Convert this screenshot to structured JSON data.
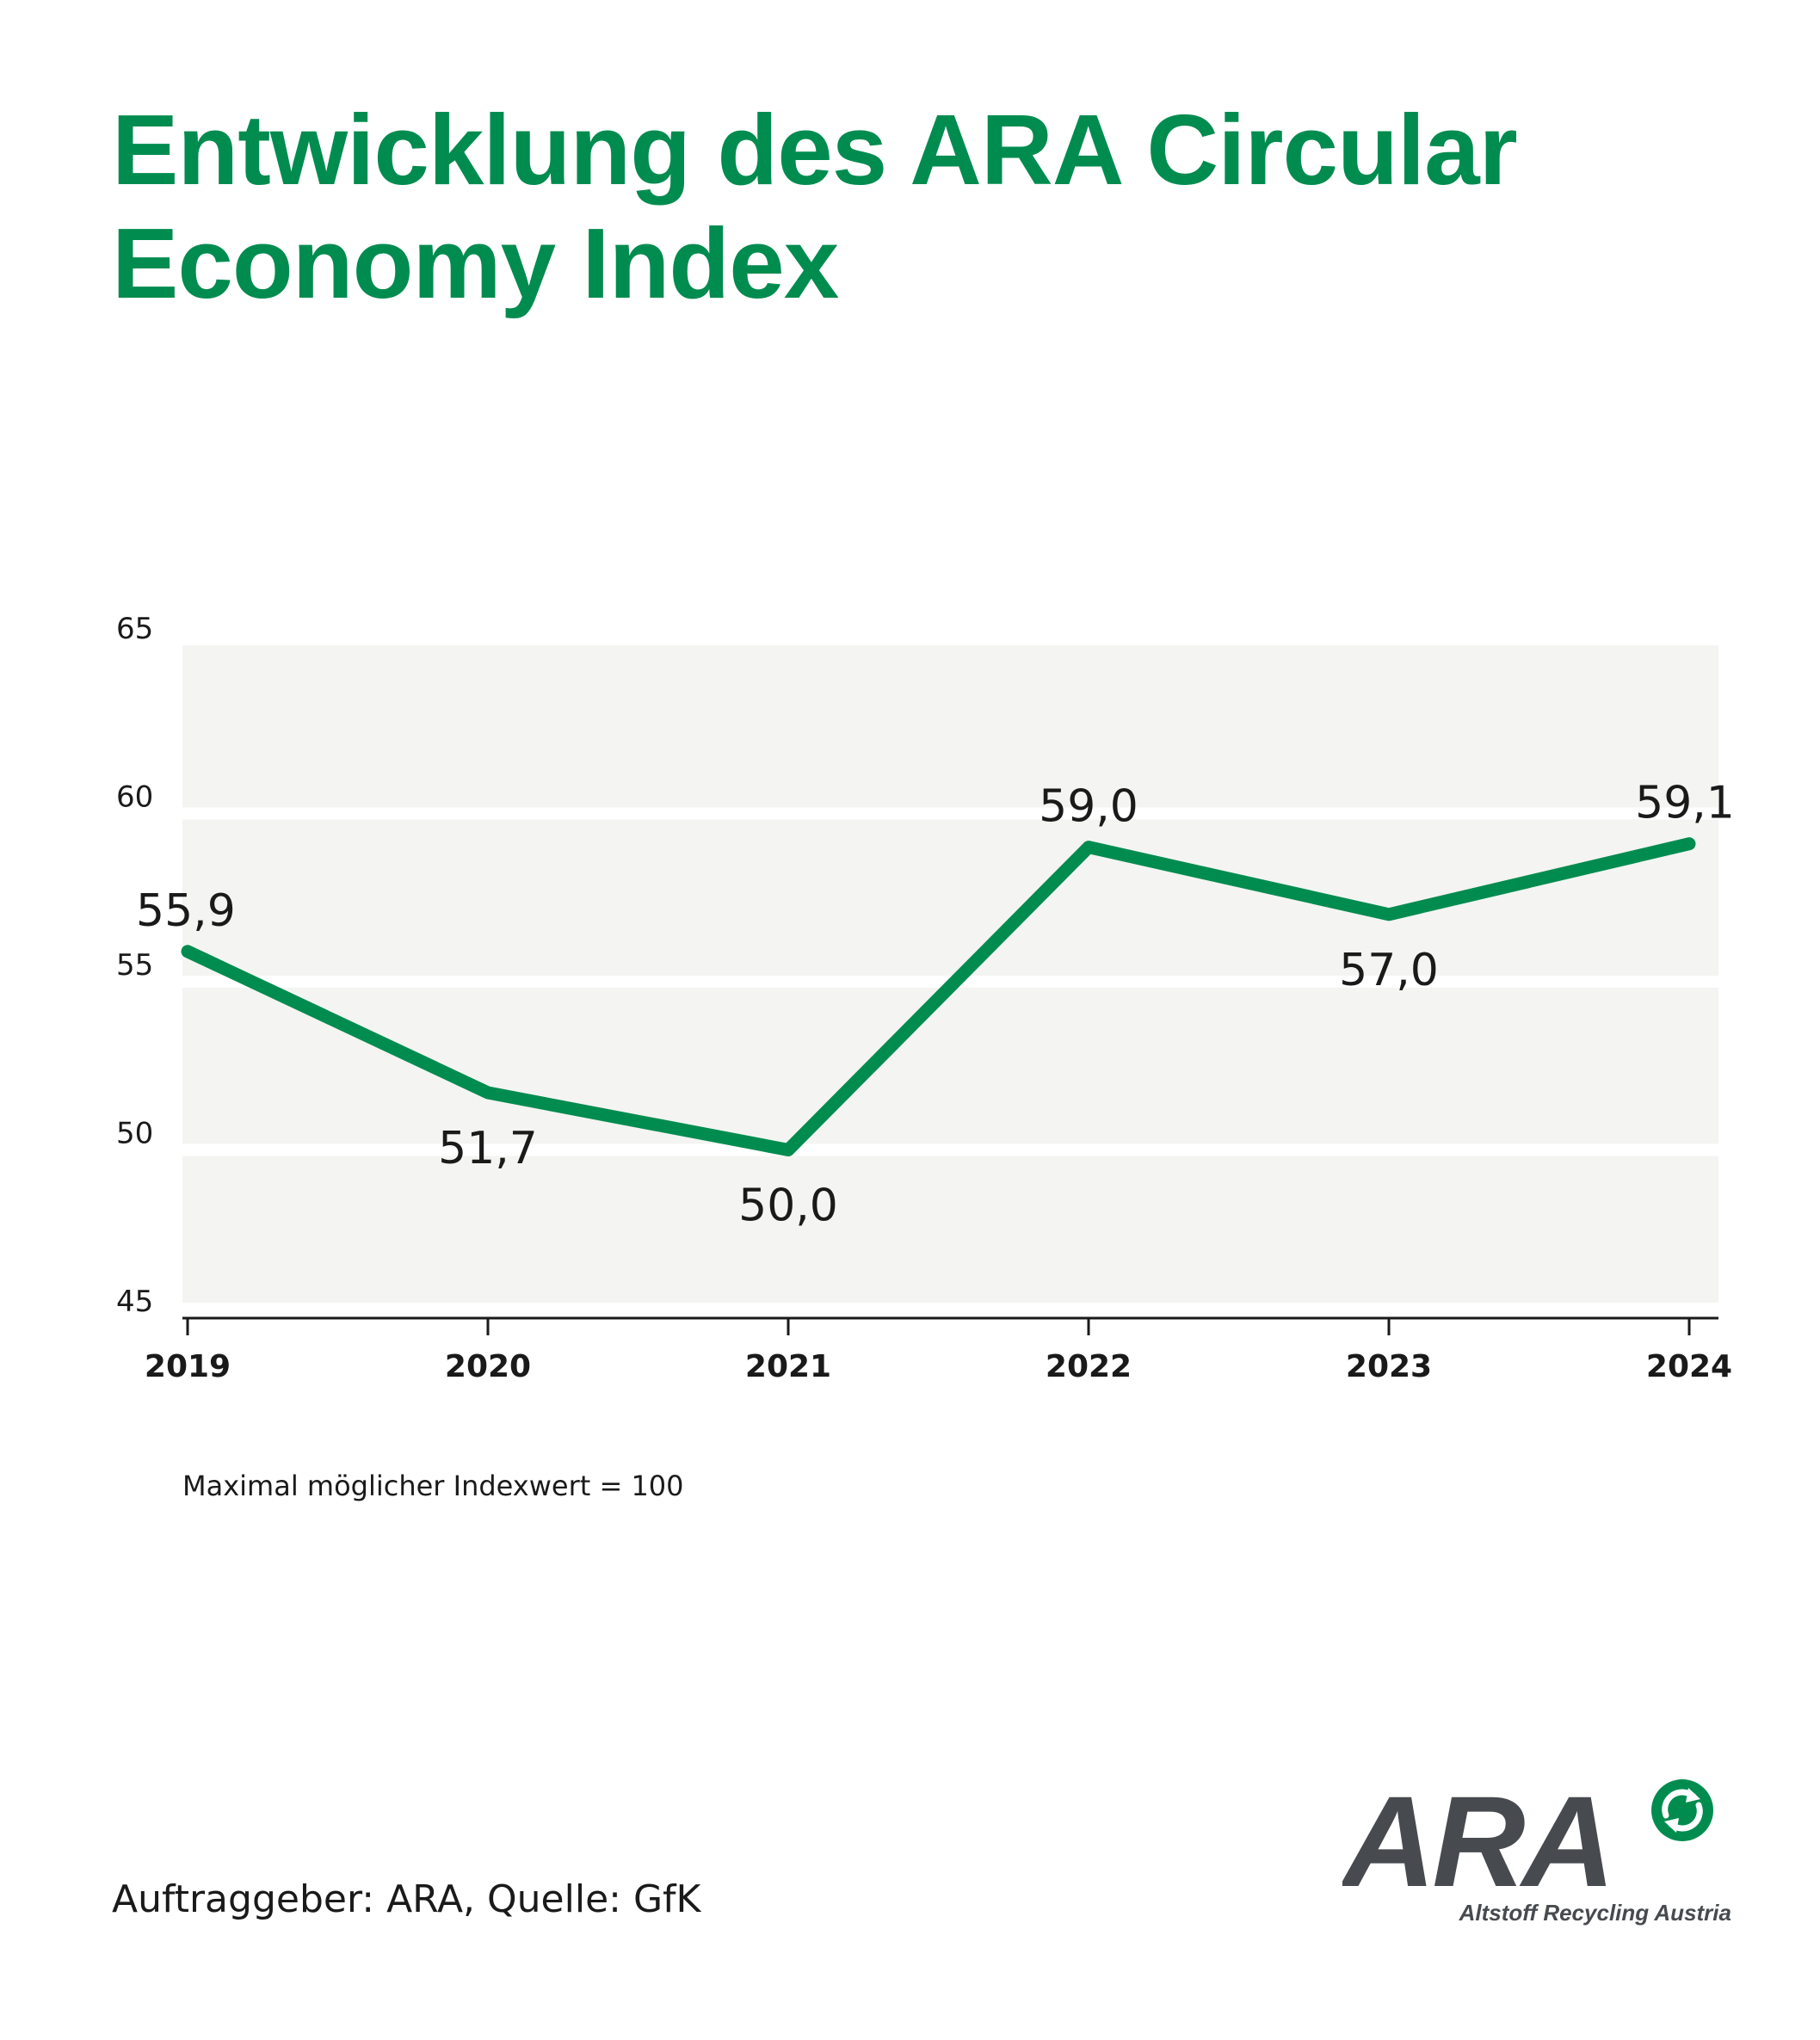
{
  "title": "Entwicklung des ARA Circular Economy Index",
  "note": "Maximal möglicher Indexwert = 100",
  "source": "Auftraggeber: ARA, Quelle: GfK",
  "logo": {
    "wordmark": "ARA",
    "tagline": "Altstoff Recycling Austria",
    "icon": "recycling-arrows-icon"
  },
  "colors": {
    "accent": "#008c4f",
    "plot_band": "#f4f4f2",
    "text": "#1a1a1a",
    "logo_gray": "#474a4f"
  },
  "chart_data": {
    "type": "line",
    "categories": [
      "2019",
      "2020",
      "2021",
      "2022",
      "2023",
      "2024"
    ],
    "values": [
      55.9,
      51.7,
      50.0,
      59.0,
      57.0,
      59.1
    ],
    "data_labels": [
      "55,9",
      "51,7",
      "50,0",
      "59,0",
      "57,0",
      "59,1"
    ],
    "yticks": [
      45,
      50,
      55,
      60,
      65
    ],
    "ylim": [
      45,
      65
    ],
    "grid": true
  }
}
